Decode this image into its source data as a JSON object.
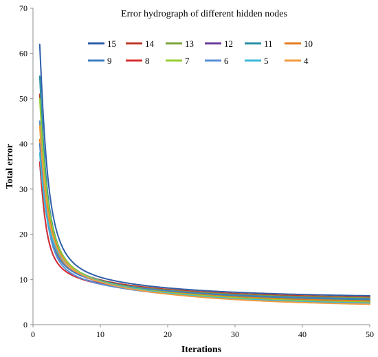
{
  "chart_data": {
    "type": "line",
    "title": "Error hydrograph of different hidden nodes",
    "xlabel": "Iterations",
    "ylabel": "Total error",
    "xlim": [
      0,
      50
    ],
    "ylim": [
      0,
      70
    ],
    "xticks": [
      0,
      10,
      20,
      30,
      40,
      50
    ],
    "yticks": [
      0,
      10,
      20,
      30,
      40,
      50,
      60,
      70
    ],
    "grid": false,
    "legend_position": "top",
    "series": [
      {
        "name": "15",
        "color": "#2e5ea8",
        "start": 62.0,
        "end": 6.0,
        "knee": 0.38
      },
      {
        "name": "14",
        "color": "#c0392b",
        "start": 51.0,
        "end": 5.7,
        "knee": 0.45
      },
      {
        "name": "13",
        "color": "#7da33a",
        "start": 45.0,
        "end": 5.5,
        "knee": 0.5
      },
      {
        "name": "12",
        "color": "#6a3d9a",
        "start": 36.0,
        "end": 5.2,
        "knee": 0.6
      },
      {
        "name": "11",
        "color": "#2a8fa3",
        "start": 55.0,
        "end": 5.0,
        "knee": 0.42
      },
      {
        "name": "10",
        "color": "#e67e22",
        "start": 41.0,
        "end": 4.8,
        "knee": 0.35
      },
      {
        "name": "9",
        "color": "#3f7fc1",
        "start": 40.0,
        "end": 5.3,
        "knee": 0.4
      },
      {
        "name": "8",
        "color": "#d63031",
        "start": 36.0,
        "end": 4.6,
        "knee": 0.55
      },
      {
        "name": "7",
        "color": "#9acd32",
        "start": 50.0,
        "end": 4.5,
        "knee": 0.33
      },
      {
        "name": "6",
        "color": "#5b8fd6",
        "start": 45.0,
        "end": 4.3,
        "knee": 0.62
      },
      {
        "name": "5",
        "color": "#3bb8d8",
        "start": 38.0,
        "end": 4.2,
        "knee": 0.2
      },
      {
        "name": "4",
        "color": "#f39c40",
        "start": 44.0,
        "end": 4.0,
        "knee": 0.28
      }
    ]
  }
}
